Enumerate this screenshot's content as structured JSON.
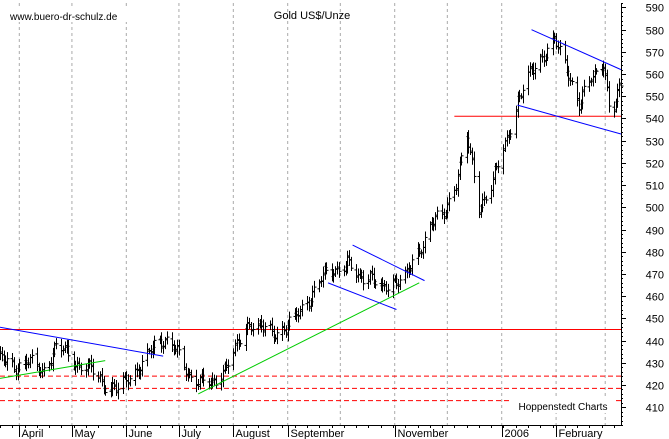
{
  "chart_data": {
    "type": "ohlc",
    "title": "Gold US$/Unze",
    "website": "www.buero-dr-schulz.de",
    "credit": "Hoppenstedt Charts",
    "ylim": [
      402,
      592
    ],
    "y_ticks": [
      410,
      420,
      430,
      440,
      450,
      460,
      470,
      480,
      490,
      500,
      510,
      520,
      530,
      540,
      550,
      560,
      570,
      580,
      590
    ],
    "x_range": [
      "2005-03-21",
      "2006-03-10"
    ],
    "x_ticks": [
      {
        "label": "April",
        "date": "2005-04-01"
      },
      {
        "label": "May",
        "date": "2005-05-01"
      },
      {
        "label": "June",
        "date": "2005-06-01"
      },
      {
        "label": "July",
        "date": "2005-07-01"
      },
      {
        "label": "August",
        "date": "2005-08-01"
      },
      {
        "label": "September",
        "date": "2005-09-01"
      },
      {
        "label": "November",
        "date": "2005-11-01"
      },
      {
        "label": "2006",
        "date": "2006-01-01"
      },
      {
        "label": "February",
        "date": "2006-02-01"
      }
    ],
    "grid": "dashed vertical",
    "anchors": [
      [
        "2005-03-21",
        432
      ],
      [
        "2005-03-29",
        428
      ],
      [
        "2005-04-06",
        431
      ],
      [
        "2005-04-14",
        426
      ],
      [
        "2005-04-22",
        437
      ],
      [
        "2005-04-28",
        435
      ],
      [
        "2005-05-04",
        429
      ],
      [
        "2005-05-12",
        427
      ],
      [
        "2005-05-20",
        420
      ],
      [
        "2005-05-27",
        418
      ],
      [
        "2005-06-03",
        424
      ],
      [
        "2005-06-10",
        429
      ],
      [
        "2005-06-17",
        438
      ],
      [
        "2005-06-23",
        441
      ],
      [
        "2005-06-29",
        436
      ],
      [
        "2005-07-06",
        425
      ],
      [
        "2005-07-13",
        422
      ],
      [
        "2005-07-20",
        420
      ],
      [
        "2005-07-27",
        428
      ],
      [
        "2005-08-03",
        437
      ],
      [
        "2005-08-10",
        448
      ],
      [
        "2005-08-17",
        446
      ],
      [
        "2005-08-24",
        443
      ],
      [
        "2005-08-31",
        446
      ],
      [
        "2005-09-07",
        452
      ],
      [
        "2005-09-14",
        460
      ],
      [
        "2005-09-21",
        469
      ],
      [
        "2005-09-28",
        472
      ],
      [
        "2005-10-05",
        475
      ],
      [
        "2005-10-11",
        468
      ],
      [
        "2005-10-18",
        470
      ],
      [
        "2005-10-25",
        462
      ],
      [
        "2005-11-01",
        467
      ],
      [
        "2005-11-08",
        470
      ],
      [
        "2005-11-15",
        480
      ],
      [
        "2005-11-22",
        494
      ],
      [
        "2005-11-29",
        496
      ],
      [
        "2005-12-06",
        512
      ],
      [
        "2005-12-12",
        532
      ],
      [
        "2005-12-19",
        500
      ],
      [
        "2005-12-26",
        510
      ],
      [
        "2006-01-03",
        528
      ],
      [
        "2006-01-10",
        548
      ],
      [
        "2006-01-17",
        560
      ],
      [
        "2006-01-24",
        568
      ],
      [
        "2006-01-31",
        575
      ],
      [
        "2006-02-07",
        563
      ],
      [
        "2006-02-14",
        546
      ],
      [
        "2006-02-21",
        558
      ],
      [
        "2006-02-28",
        566
      ],
      [
        "2006-03-03",
        545
      ],
      [
        "2006-03-06",
        544
      ],
      [
        "2006-03-10",
        556
      ]
    ],
    "horizontal_lines": [
      {
        "y": 445,
        "color": "#ff0000",
        "style": "solid",
        "from": "2005-03-21",
        "to": "2006-03-10"
      },
      {
        "y": 541,
        "color": "#ff0000",
        "style": "solid",
        "from": "2005-12-05",
        "to": "2006-03-10"
      },
      {
        "y": 424,
        "color": "#ff0000",
        "style": "dashed",
        "from": "2005-03-21",
        "to": "2006-03-10"
      },
      {
        "y": 418.5,
        "color": "#ff0000",
        "style": "dashed",
        "from": "2005-03-21",
        "to": "2006-03-10"
      },
      {
        "y": 413,
        "color": "#ff0000",
        "style": "dashed",
        "from": "2005-03-21",
        "to": "2006-03-10"
      }
    ],
    "trend_lines": [
      {
        "from": [
          "2005-03-21",
          446
        ],
        "to": [
          "2005-06-22",
          433
        ],
        "color": "#0000ff"
      },
      {
        "from": [
          "2005-03-21",
          423
        ],
        "to": [
          "2005-05-20",
          431
        ],
        "color": "#00cc00"
      },
      {
        "from": [
          "2005-07-12",
          416
        ],
        "to": [
          "2005-11-15",
          466
        ],
        "color": "#00cc00"
      },
      {
        "from": [
          "2005-10-08",
          483
        ],
        "to": [
          "2005-11-18",
          467
        ],
        "color": "#0000ff"
      },
      {
        "from": [
          "2005-09-24",
          466
        ],
        "to": [
          "2005-11-02",
          454
        ],
        "color": "#0000ff"
      },
      {
        "from": [
          "2006-01-18",
          580
        ],
        "to": [
          "2006-03-10",
          562
        ],
        "color": "#0000ff"
      },
      {
        "from": [
          "2006-01-10",
          546
        ],
        "to": [
          "2006-03-10",
          533
        ],
        "color": "#0000ff"
      }
    ]
  }
}
